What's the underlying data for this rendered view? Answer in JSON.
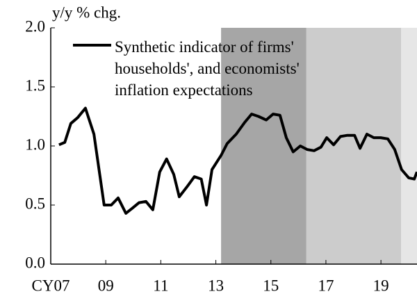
{
  "chart_data": {
    "type": "line",
    "y_label": "y/y % chg.",
    "x": [
      2007.3,
      2007.51,
      2007.73,
      2007.98,
      2008.26,
      2008.57,
      2008.94,
      2009.2,
      2009.45,
      2009.73,
      2009.95,
      2010.21,
      2010.46,
      2010.71,
      2010.96,
      2011.21,
      2011.47,
      2011.67,
      2011.97,
      2012.22,
      2012.47,
      2012.66,
      2012.86,
      2013.19,
      2013.41,
      2013.74,
      2014.05,
      2014.3,
      2014.55,
      2014.83,
      2015.08,
      2015.33,
      2015.56,
      2015.81,
      2016.07,
      2016.32,
      2016.57,
      2016.82,
      2017.03,
      2017.28,
      2017.53,
      2017.78,
      2018.04,
      2018.24,
      2018.49,
      2018.74,
      2018.99,
      2019.25,
      2019.5,
      2019.75,
      2020.01,
      2020.21,
      2020.31
    ],
    "series": [
      {
        "name": "Synthetic indicator of firms' households', and economists' inflation expectations",
        "color": "#000000",
        "values": [
          1.01,
          1.03,
          1.19,
          1.24,
          1.32,
          1.1,
          0.5,
          0.5,
          0.56,
          0.43,
          0.47,
          0.52,
          0.53,
          0.46,
          0.78,
          0.89,
          0.76,
          0.57,
          0.66,
          0.74,
          0.72,
          0.5,
          0.8,
          0.92,
          1.02,
          1.1,
          1.2,
          1.27,
          1.25,
          1.22,
          1.27,
          1.26,
          1.07,
          0.95,
          1.0,
          0.97,
          0.96,
          0.99,
          1.07,
          1.01,
          1.08,
          1.09,
          1.09,
          0.98,
          1.1,
          1.07,
          1.07,
          1.06,
          0.97,
          0.8,
          0.73,
          0.72,
          0.78
        ]
      }
    ],
    "shaded_regions": [
      {
        "start": 2013.19,
        "end": 2016.29,
        "color": "#a6a6a6"
      },
      {
        "start": 2016.29,
        "end": 2019.73,
        "color": "#cccccc"
      },
      {
        "start": 2019.73,
        "end": 2020.31,
        "color": "#e6e6e6"
      }
    ],
    "xlim": [
      2007,
      2020.31
    ],
    "xticks": [
      {
        "value": 2007,
        "label": "CY07"
      },
      {
        "value": 2009,
        "label": "09"
      },
      {
        "value": 2011,
        "label": "11"
      },
      {
        "value": 2013,
        "label": "13"
      },
      {
        "value": 2015,
        "label": "15"
      },
      {
        "value": 2017,
        "label": "17"
      },
      {
        "value": 2019,
        "label": "19"
      }
    ],
    "ylim": [
      0,
      2
    ],
    "yticks": [
      {
        "value": 0,
        "label": "0.0"
      },
      {
        "value": 0.5,
        "label": "0.5"
      },
      {
        "value": 1,
        "label": "1.0"
      },
      {
        "value": 1.5,
        "label": "1.5"
      },
      {
        "value": 2,
        "label": "2.0"
      }
    ],
    "legend": "upper-left"
  }
}
